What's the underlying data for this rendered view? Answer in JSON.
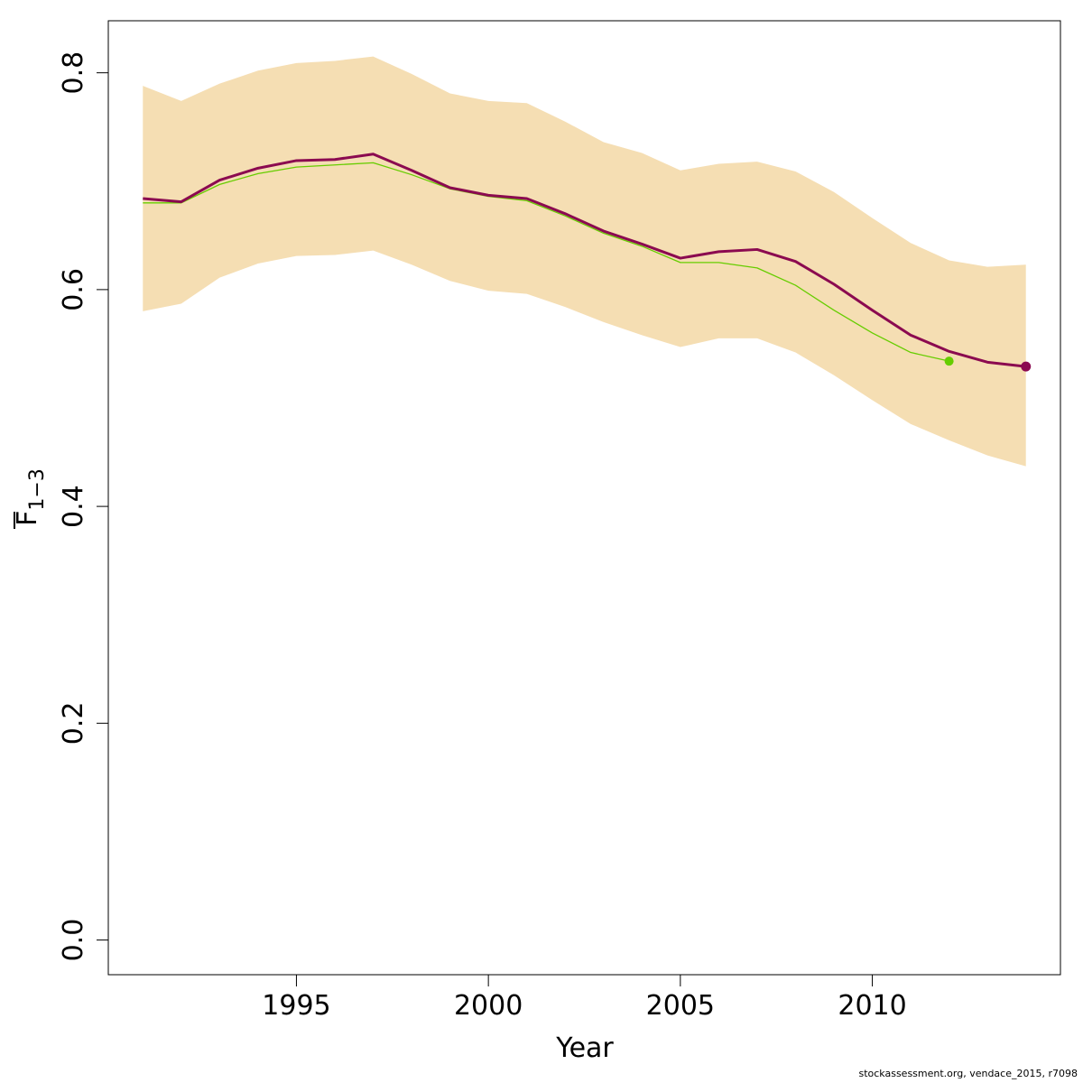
{
  "footer_text": "stockassessment.org, vendace_2015, r7098",
  "chart_data": {
    "type": "line",
    "title": "",
    "xlabel": "Year",
    "ylabel_main": "F",
    "ylabel_sub": "1−3",
    "xlim": [
      1990.1,
      2014.9
    ],
    "ylim": [
      -0.032,
      0.848
    ],
    "x_ticks": [
      1995,
      2000,
      2005,
      2010
    ],
    "y_ticks": [
      0.0,
      0.2,
      0.4,
      0.6,
      0.8
    ],
    "y_tick_labels": [
      "0.0",
      "0.2",
      "0.4",
      "0.6",
      "0.8"
    ],
    "grid": false,
    "legend": "none",
    "colors": {
      "band": "#F5DEB3",
      "estimate": "#8B0A50",
      "previous": "#66CD00"
    },
    "band": {
      "x": [
        1991,
        1992,
        1993,
        1994,
        1995,
        1996,
        1997,
        1998,
        1999,
        2000,
        2001,
        2002,
        2003,
        2004,
        2005,
        2006,
        2007,
        2008,
        2009,
        2010,
        2011,
        2012,
        2013,
        2014
      ],
      "lower": [
        0.58,
        0.587,
        0.611,
        0.624,
        0.631,
        0.632,
        0.636,
        0.623,
        0.608,
        0.599,
        0.596,
        0.584,
        0.57,
        0.558,
        0.547,
        0.555,
        0.555,
        0.542,
        0.521,
        0.498,
        0.476,
        0.461,
        0.447,
        0.437
      ],
      "upper": [
        0.788,
        0.774,
        0.79,
        0.802,
        0.809,
        0.811,
        0.815,
        0.799,
        0.781,
        0.774,
        0.772,
        0.755,
        0.736,
        0.726,
        0.71,
        0.716,
        0.718,
        0.709,
        0.69,
        0.666,
        0.643,
        0.627,
        0.621,
        0.623
      ]
    },
    "series": [
      {
        "x": [
          1991,
          1992,
          1993,
          1994,
          1995,
          1996,
          1997,
          1998,
          1999,
          2000,
          2001,
          2002,
          2003,
          2004,
          2005,
          2006,
          2007,
          2008,
          2009,
          2010,
          2011,
          2012,
          2013,
          2014
        ],
        "values": [
          0.684,
          0.681,
          0.701,
          0.712,
          0.719,
          0.72,
          0.725,
          0.71,
          0.694,
          0.687,
          0.684,
          0.67,
          0.654,
          0.642,
          0.629,
          0.635,
          0.637,
          0.626,
          0.605,
          0.581,
          0.558,
          0.543,
          0.533,
          0.529
        ],
        "end_marker": true
      },
      {
        "x": [
          1991,
          1992,
          1993,
          1994,
          1995,
          1996,
          1997,
          1998,
          1999,
          2000,
          2001,
          2002,
          2003,
          2004,
          2005,
          2006,
          2007,
          2008,
          2009,
          2010,
          2011,
          2012
        ],
        "values": [
          0.68,
          0.68,
          0.697,
          0.707,
          0.713,
          0.715,
          0.717,
          0.706,
          0.693,
          0.686,
          0.682,
          0.668,
          0.652,
          0.64,
          0.625,
          0.625,
          0.62,
          0.604,
          0.581,
          0.56,
          0.542,
          0.534
        ],
        "end_marker": true
      }
    ]
  }
}
